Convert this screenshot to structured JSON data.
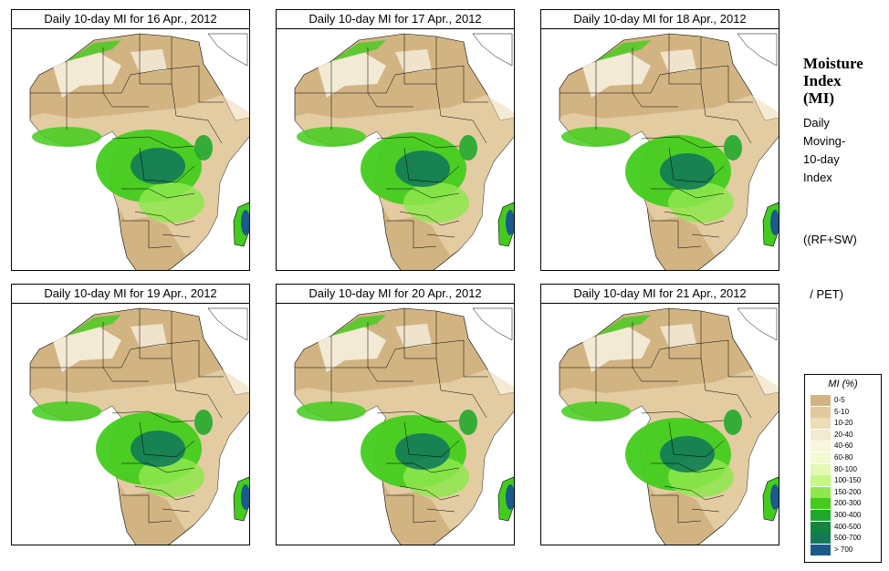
{
  "panels": [
    {
      "title": "Daily 10-day MI for  16 Apr., 2012"
    },
    {
      "title": "Daily 10-day MI for  17 Apr., 2012"
    },
    {
      "title": "Daily 10-day MI for  18 Apr., 2012"
    },
    {
      "title": "Daily 10-day MI for  19 Apr., 2012"
    },
    {
      "title": "Daily 10-day MI for  20 Apr., 2012"
    },
    {
      "title": "Daily 10-day MI for  21 Apr., 2012"
    }
  ],
  "sidebar": {
    "title_lines": [
      "Moisture",
      "Index",
      "(MI)"
    ],
    "desc_lines": [
      "Daily",
      "Moving-",
      "10-day",
      "Index"
    ],
    "formula_lines": [
      "((RF+SW)",
      "  / PET)"
    ]
  },
  "legend": {
    "title": "MI (%)",
    "items": [
      {
        "label": "0-5",
        "color": "#d2b483"
      },
      {
        "label": "5-10",
        "color": "#e2c99d"
      },
      {
        "label": "10-20",
        "color": "#eedcb8"
      },
      {
        "label": "20-40",
        "color": "#f4ead2"
      },
      {
        "label": "40-60",
        "color": "#faf5dc"
      },
      {
        "label": "60-80",
        "color": "#f3fad0"
      },
      {
        "label": "80-100",
        "color": "#e3f8b0"
      },
      {
        "label": "100-150",
        "color": "#c8f58a"
      },
      {
        "label": "150-200",
        "color": "#8ee84d"
      },
      {
        "label": "200-300",
        "color": "#43cc1d"
      },
      {
        "label": "300-400",
        "color": "#20a82b"
      },
      {
        "label": "400-500",
        "color": "#11873d"
      },
      {
        "label": "500-700",
        "color": "#137a58"
      },
      {
        "label": "> 700",
        "color": "#1a5a8c"
      }
    ]
  },
  "colors": {
    "desert": "#d2b483",
    "sahara_pale": "#f6efdf",
    "wet": "#43cc1d",
    "very_wet": "#137a58",
    "extreme": "#1a5a8c"
  }
}
